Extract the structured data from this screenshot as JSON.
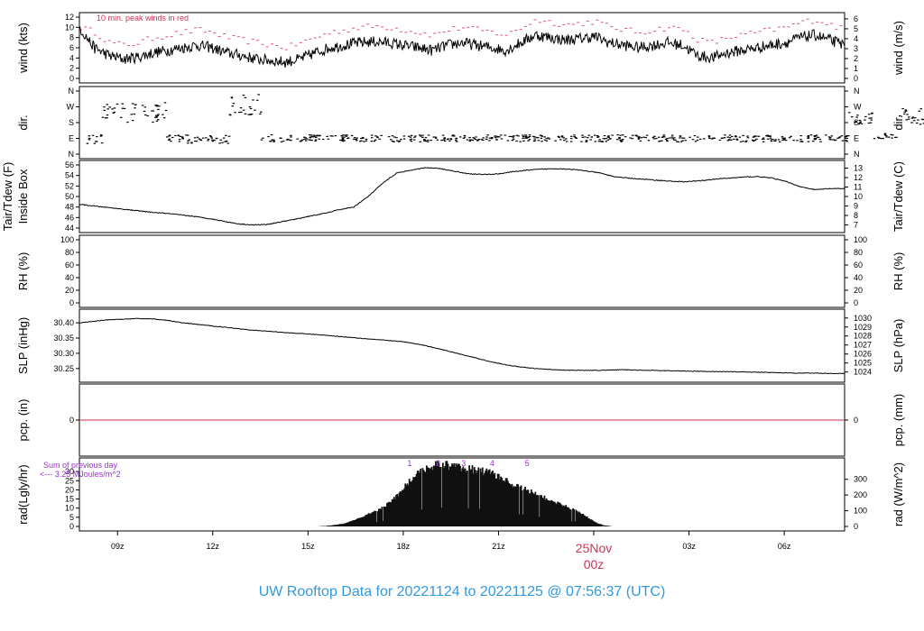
{
  "title": "UW Rooftop Data for 20221124  to  20221125 @ 07:56:37  (UTC)",
  "chart_data": [
    {
      "type": "line",
      "ylabel_left": "wind (kts)",
      "ylabel_right": "wind (m/s)",
      "ylim": [
        0,
        12
      ],
      "left_ticks": [
        "0",
        "2",
        "4",
        "6",
        "8",
        "10",
        "12"
      ],
      "right_ticks": [
        "0",
        "1",
        "2",
        "3",
        "4",
        "5",
        "6"
      ],
      "annotation": "10 min. peak winds in red",
      "series": [
        {
          "values": [
            10.0,
            6.0,
            4.5,
            3.8,
            4.2,
            5.0,
            5.5,
            6.0,
            6.5,
            6.0,
            5.0,
            4.5,
            3.8,
            3.5,
            3.2,
            3.8,
            5.0,
            6.0,
            6.5,
            7.0,
            7.2,
            7.0,
            6.5,
            6.0,
            5.5,
            6.5,
            7.0,
            6.5,
            6.0,
            5.5,
            7.0,
            8.5,
            8.0,
            7.5,
            7.8,
            8.2,
            7.0,
            6.5,
            6.0,
            6.5,
            7.0,
            6.5,
            4.5,
            4.0,
            5.0,
            5.5,
            6.0,
            6.5,
            7.0,
            8.0,
            8.5,
            7.5,
            6.5
          ]
        },
        {
          "values": [
            10.0,
            9.0,
            7.0,
            6.5,
            7.0,
            8.0,
            8.5,
            9.0,
            9.5,
            9.0,
            8.0,
            7.5,
            7.0,
            6.5,
            6.0,
            7.0,
            8.0,
            9.0,
            9.5,
            10.0,
            10.2,
            10.0,
            9.5,
            9.0,
            8.5,
            9.5,
            10.0,
            9.5,
            9.0,
            8.5,
            10.0,
            11.5,
            11.0,
            10.5,
            10.8,
            11.2,
            10.0,
            9.5,
            9.0,
            9.5,
            10.0,
            9.5,
            7.5,
            7.0,
            8.0,
            8.5,
            9.0,
            9.5,
            10.0,
            11.0,
            11.5,
            10.5,
            9.5
          ]
        }
      ]
    },
    {
      "type": "scatter",
      "ylabel_left": "dir.",
      "ylabel_right": "dir.",
      "left_ticks": [
        "N",
        "E",
        "S",
        "W",
        "N"
      ],
      "right_ticks": [
        "N",
        "E",
        "S",
        "W",
        "N"
      ],
      "ylim": [
        0,
        360
      ],
      "segments": [
        {
          "t": [
            8.0,
            8.5
          ],
          "range": [
            60,
            110
          ]
        },
        {
          "t": [
            8.5,
            10.5
          ],
          "range": [
            180,
            300
          ]
        },
        {
          "t": [
            10.5,
            12.5
          ],
          "range": [
            60,
            110
          ]
        },
        {
          "t": [
            12.5,
            13.5
          ],
          "range": [
            220,
            340
          ]
        },
        {
          "t": [
            13.5,
            32.0
          ],
          "range": [
            70,
            110
          ]
        },
        {
          "t": [
            32.0,
            32.8
          ],
          "range": [
            170,
            240
          ]
        },
        {
          "t": [
            32.8,
            33.5
          ],
          "range": [
            80,
            120
          ]
        },
        {
          "t": [
            33.5,
            34.7
          ],
          "range": [
            170,
            260
          ]
        },
        {
          "t": [
            34.7,
            40.0
          ],
          "range": [
            70,
            110
          ]
        }
      ]
    },
    {
      "type": "line",
      "ylabel_left": "Tair/Tdew (F)\nInside Box",
      "ylabel_right": "Tair/Tdew (C)",
      "ylim": [
        44,
        56
      ],
      "left_ticks": [
        "44",
        "46",
        "48",
        "50",
        "52",
        "54",
        "56"
      ],
      "right_ticks": [
        "7",
        "8",
        "9",
        "10",
        "11",
        "12",
        "13"
      ],
      "series": [
        {
          "values": [
            48.5,
            48.2,
            47.9,
            47.6,
            47.3,
            47.0,
            46.8,
            46.5,
            46.2,
            45.8,
            45.3,
            44.8,
            44.6,
            44.7,
            45.2,
            45.7,
            46.3,
            46.8,
            47.5,
            48.0,
            50.0,
            52.5,
            54.5,
            55.0,
            55.5,
            55.3,
            54.8,
            54.3,
            54.2,
            54.3,
            54.7,
            55.0,
            55.2,
            55.3,
            55.2,
            54.9,
            54.5,
            53.8,
            53.5,
            53.3,
            53.1,
            52.9,
            52.8,
            53.0,
            53.3,
            53.5,
            53.7,
            53.8,
            53.5,
            52.8,
            51.8,
            51.3,
            51.5,
            51.5
          ]
        }
      ]
    },
    {
      "type": "line",
      "ylabel_left": "RH (%)",
      "ylabel_right": "RH (%)",
      "ylim": [
        0,
        100
      ],
      "left_ticks": [
        "0",
        "20",
        "40",
        "60",
        "80",
        "100"
      ],
      "right_ticks": [
        "0",
        "20",
        "40",
        "60",
        "80",
        "100"
      ],
      "series": []
    },
    {
      "type": "line",
      "ylabel_left": "SLP (inHg)",
      "ylabel_right": "SLP (hPa)",
      "ylim": [
        30.22,
        30.43
      ],
      "left_ticks": [
        "30.25",
        "30.30",
        "30.35",
        "30.40"
      ],
      "right_ticks": [
        "1024",
        "1025",
        "1026",
        "1027",
        "1028",
        "1029",
        "1030"
      ],
      "series": [
        {
          "values": [
            30.4,
            30.405,
            30.41,
            30.412,
            30.414,
            30.413,
            30.408,
            30.4,
            30.395,
            30.39,
            30.385,
            30.38,
            30.375,
            30.372,
            30.368,
            30.365,
            30.362,
            30.358,
            30.354,
            30.35,
            30.346,
            30.342,
            30.338,
            30.33,
            30.32,
            30.308,
            30.296,
            30.284,
            30.272,
            30.262,
            30.255,
            30.25,
            30.247,
            30.245,
            30.244,
            30.244,
            30.245,
            30.246,
            30.245,
            30.244,
            30.243,
            30.242,
            30.241,
            30.24,
            30.24,
            30.239,
            30.238,
            30.237,
            30.236,
            30.235,
            30.235,
            30.234,
            30.234
          ]
        }
      ]
    },
    {
      "type": "line",
      "ylabel_left": "pcp. (in)",
      "ylabel_right": "pcp. (mm)",
      "left_ticks": [
        "0"
      ],
      "right_ticks": [
        "0"
      ],
      "series": [
        {
          "values": [
            0,
            0
          ]
        }
      ]
    },
    {
      "type": "bar",
      "ylabel_left": "rad(Lgly/hr)",
      "ylabel_right": "rad (W/m^2)",
      "ylim": [
        0,
        35
      ],
      "left_ticks": [
        "0",
        "5",
        "10",
        "15",
        "20",
        "25",
        "30"
      ],
      "right_ticks": [
        "0",
        "100",
        "200",
        "300"
      ],
      "note_lines": [
        "Sum of previous day",
        "<--- 3.25 MJoules/m^2"
      ],
      "markers": [
        "1",
        "2",
        "3",
        "4",
        "5"
      ],
      "values": [
        0,
        0,
        0.3,
        0.8,
        1.5,
        3,
        5,
        7,
        9,
        12,
        16,
        22,
        27,
        30,
        33,
        34,
        33.5,
        33,
        32,
        31,
        30,
        29,
        27,
        24,
        22,
        20,
        18,
        16,
        14,
        12,
        10,
        8,
        5,
        2,
        0.5,
        0
      ]
    }
  ],
  "x_ticks": [
    "09z",
    "12z",
    "15z",
    "18z",
    "21z",
    "00z",
    "03z",
    "06z"
  ],
  "date_marker": {
    "line1": "25Nov",
    "line2": "00z"
  }
}
